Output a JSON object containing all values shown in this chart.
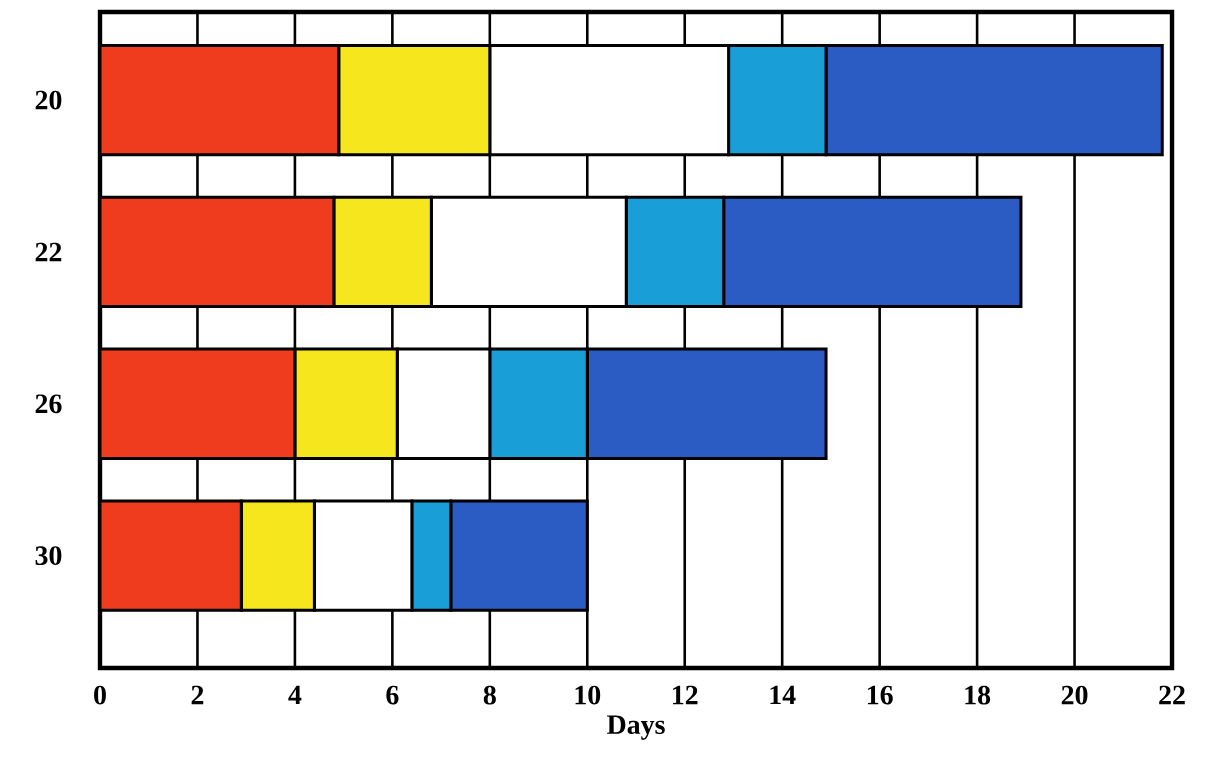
{
  "chart_data": {
    "type": "bar",
    "orientation": "horizontal",
    "stacked": true,
    "xlabel": "Days",
    "categories": [
      "20",
      "22",
      "26",
      "30"
    ],
    "series": [
      {
        "color": "#f03c1e",
        "values": [
          4.9,
          4.8,
          4.0,
          2.9
        ]
      },
      {
        "color": "#f5e61e",
        "values": [
          3.1,
          2.0,
          2.1,
          1.5
        ]
      },
      {
        "color": "#ffffff",
        "values": [
          4.9,
          4.0,
          1.9,
          2.0
        ]
      },
      {
        "color": "#1a9ed8",
        "values": [
          2.0,
          2.0,
          2.0,
          0.8
        ]
      },
      {
        "color": "#2a5cc4",
        "values": [
          6.9,
          6.1,
          4.9,
          2.8
        ]
      }
    ],
    "xlim": [
      0,
      22
    ],
    "xticks": [
      0,
      2,
      4,
      6,
      8,
      10,
      12,
      14,
      16,
      18,
      20,
      22
    ],
    "grid": "x"
  }
}
